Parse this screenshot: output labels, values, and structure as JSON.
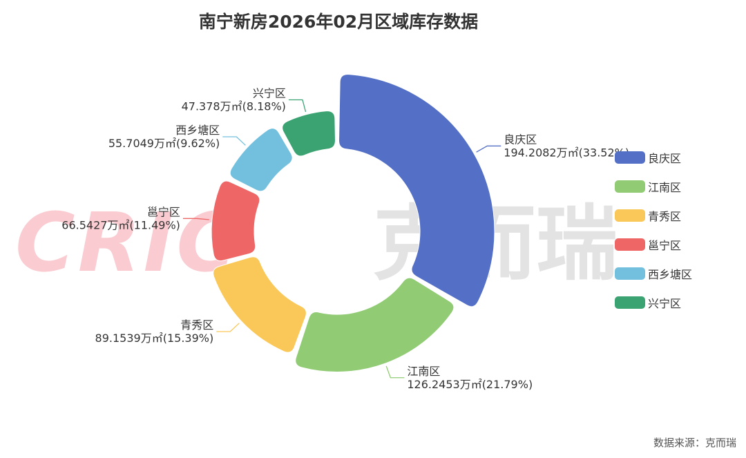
{
  "title": "南宁新房2026年02月区域库存数据",
  "source": "数据来源：克而瑞",
  "watermark": {
    "latin": "CRIC",
    "chinese": "克而瑞"
  },
  "colors": {
    "良庆区": "#5470c6",
    "江南区": "#91cc75",
    "青秀区": "#fac858",
    "邕宁区": "#ee6666",
    "西乡塘区": "#73c0de",
    "兴宁区": "#3ba272"
  },
  "chart_data": {
    "type": "pie",
    "variant": "rose-donut",
    "unit": "万㎡",
    "legend_position": "right",
    "slices": [
      {
        "name": "良庆区",
        "value": 194.2082,
        "percent": 33.52,
        "value_label": "194.2082万㎡(33.52%)"
      },
      {
        "name": "江南区",
        "value": 126.2453,
        "percent": 21.79,
        "value_label": "126.2453万㎡(21.79%)"
      },
      {
        "name": "青秀区",
        "value": 89.1539,
        "percent": 15.39,
        "value_label": "89.1539万㎡(15.39%)"
      },
      {
        "name": "邕宁区",
        "value": 66.5427,
        "percent": 11.49,
        "value_label": "66.5427万㎡(11.49%)"
      },
      {
        "name": "西乡塘区",
        "value": 55.7049,
        "percent": 9.62,
        "value_label": "55.7049万㎡(9.62%)"
      },
      {
        "name": "兴宁区",
        "value": 47.378,
        "percent": 8.18,
        "value_label": "47.378万㎡(8.18%)"
      }
    ]
  }
}
